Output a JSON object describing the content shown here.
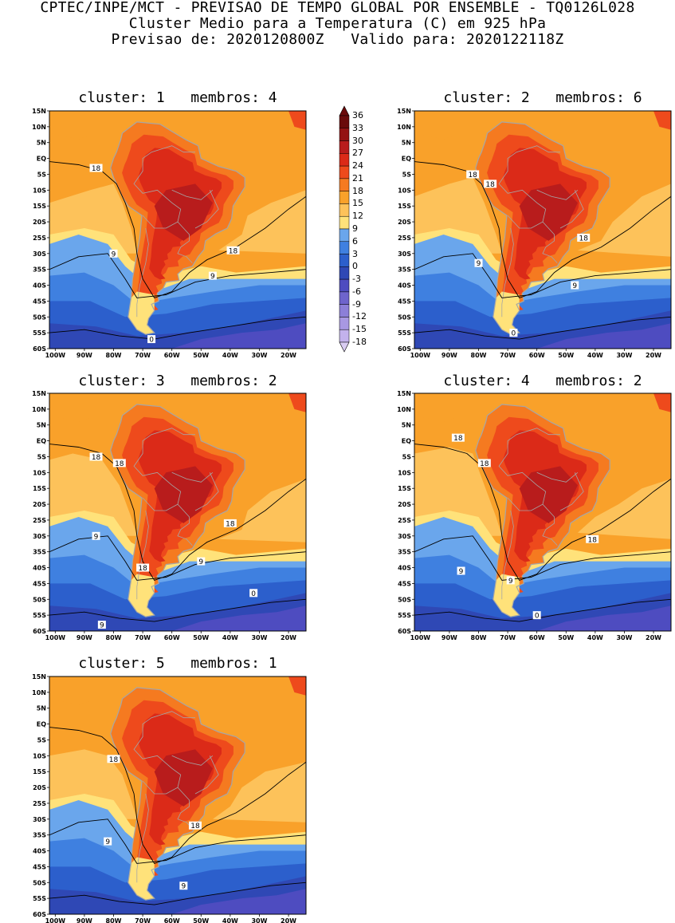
{
  "header": {
    "line1": "CPTEC/INPE/MCT - PREVISAO DE TEMPO GLOBAL POR ENSEMBLE - TQ0126L028",
    "line2": "Cluster Medio para a Temperatura (C) em 925 hPa",
    "line3": "Previsao de: 2020120800Z   Valido para: 2020122118Z"
  },
  "colors": {
    "c_m18": "#d9ccf2",
    "c_m15": "#c3b2ec",
    "c_m12": "#a898e2",
    "c_m9": "#8c7fd8",
    "c_m6": "#6e64cc",
    "c_m3": "#4e4cc0",
    "c_0": "#2f48b5",
    "c_3": "#2c5fcc",
    "c_6": "#3f80e0",
    "c_9": "#6aa6ec",
    "c_12": "#ffe27a",
    "c_15": "#fdc25a",
    "c_18": "#f9a12a",
    "c_21": "#f57a20",
    "c_24": "#ee4a1c",
    "c_27": "#db2a18",
    "c_30": "#b81c1c",
    "c_33": "#941212",
    "c_36": "#6a0a0a",
    "contour": "#000000",
    "coast": "#a6a6a6"
  },
  "colorbar": {
    "labels": [
      "36",
      "33",
      "30",
      "27",
      "24",
      "21",
      "18",
      "15",
      "12",
      "9",
      "6",
      "3",
      "0",
      "-3",
      "-6",
      "-9",
      "-12",
      "-15",
      "-18"
    ]
  },
  "axes": {
    "lat_labels": [
      "15N",
      "10N",
      "5N",
      "EQ",
      "5S",
      "10S",
      "15S",
      "20S",
      "25S",
      "30S",
      "35S",
      "40S",
      "45S",
      "50S",
      "55S",
      "60S"
    ],
    "lon_labels": [
      "100W",
      "90W",
      "80W",
      "70W",
      "60W",
      "50W",
      "40W",
      "30W",
      "20W"
    ]
  },
  "panels": [
    {
      "title": "cluster: 1   membros: 4",
      "contour_labels": [
        "18",
        "18",
        "9",
        "9",
        "0"
      ]
    },
    {
      "title": "cluster: 2   membros: 6",
      "contour_labels": [
        "18",
        "18",
        "18",
        "9",
        "9",
        "0"
      ]
    },
    {
      "title": "cluster: 3   membros: 2",
      "contour_labels": [
        "18",
        "18",
        "18",
        "18",
        "9",
        "9",
        "0",
        "9"
      ]
    },
    {
      "title": "cluster: 4   membros: 2",
      "contour_labels": [
        "18",
        "18",
        "18",
        "9",
        "9",
        "0"
      ]
    },
    {
      "title": "cluster: 5   membros: 1",
      "contour_labels": [
        "18",
        "18",
        "9",
        "9"
      ]
    }
  ]
}
